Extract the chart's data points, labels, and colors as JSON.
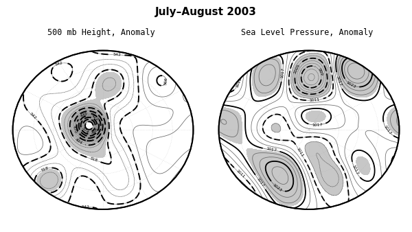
{
  "title": "July–August 2003",
  "subtitle_left": "500 mb Height, Anomaly",
  "subtitle_right": "Sea Level Pressure, Anomaly",
  "title_fontsize": 11,
  "subtitle_fontsize": 8.5,
  "background_color": "#ffffff",
  "contour_color_thin": "#666666",
  "contour_color_thick": "#000000",
  "shade_color": "#aaaaaa",
  "fig_width": 6.0,
  "fig_height": 3.38
}
